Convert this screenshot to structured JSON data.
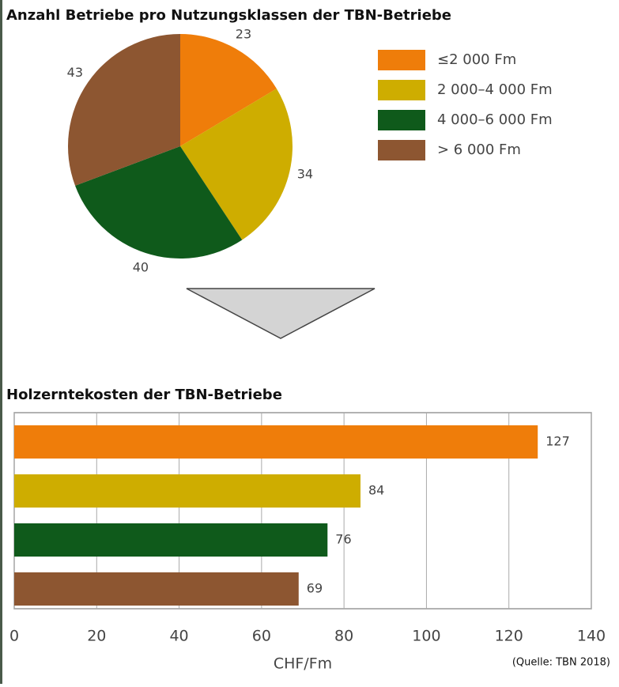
{
  "chart_data": [
    {
      "type": "pie",
      "title": "Anzahl Betriebe pro Nutzungsklassen der TBN-Betriebe",
      "categories": [
        "≤2 000 Fm",
        "2 000–4 000 Fm",
        "4 000–6 000 Fm",
        "> 6 000 Fm"
      ],
      "values": [
        23,
        34,
        40,
        43
      ],
      "colors": [
        "#ef7d0a",
        "#cead00",
        "#0f5a1b",
        "#8d5631"
      ],
      "legend": "right"
    },
    {
      "type": "hbar",
      "title": "Holzerntekosten der TBN-Betriebe",
      "categories": [
        null,
        null,
        null,
        null
      ],
      "values": [
        127,
        84,
        76,
        69
      ],
      "colors": [
        "#ef7d0a",
        "#cead00",
        "#0f5a1b",
        "#8d5631"
      ],
      "xlim": [
        0,
        140
      ],
      "xticks": [
        0,
        20,
        40,
        60,
        80,
        100,
        120,
        140
      ],
      "xlabel": "CHF/Fm",
      "grid": true,
      "source": "(Quelle: TBN 2018)"
    }
  ]
}
